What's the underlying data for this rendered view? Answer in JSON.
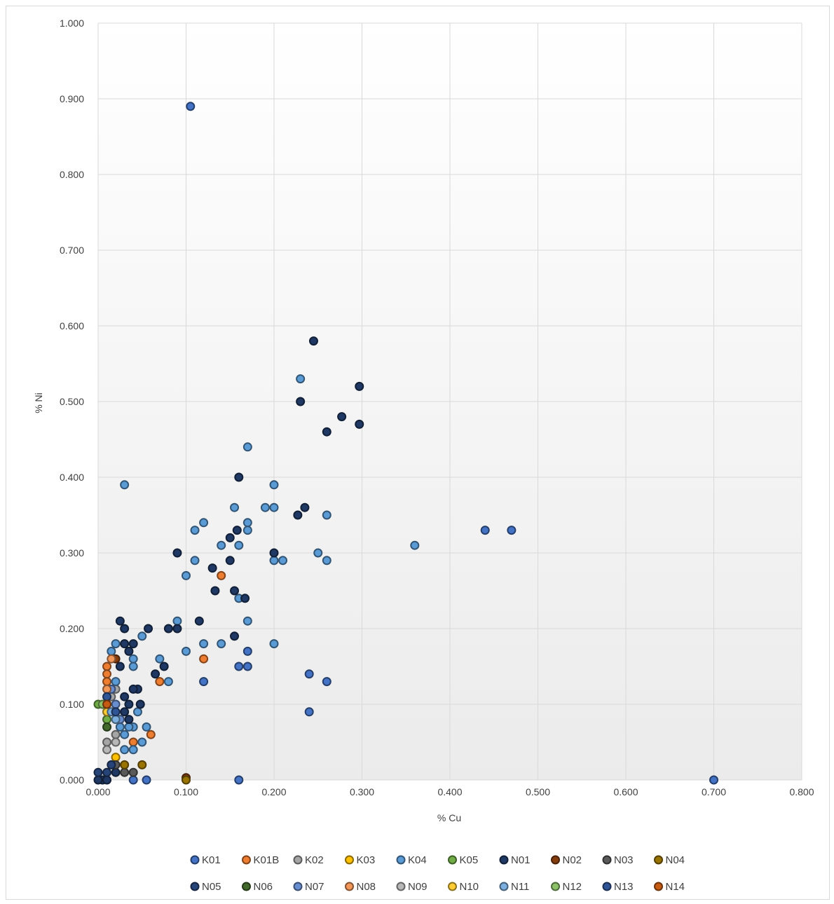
{
  "chart_data": {
    "type": "scatter",
    "xlabel": "% Cu",
    "ylabel": "% Ni",
    "xlim": [
      0,
      0.8
    ],
    "ylim": [
      0,
      1.0
    ],
    "x_ticks": [
      "0.000",
      "0.100",
      "0.200",
      "0.300",
      "0.400",
      "0.500",
      "0.600",
      "0.700",
      "0.800"
    ],
    "y_ticks": [
      "0.000",
      "0.100",
      "0.200",
      "0.300",
      "0.400",
      "0.500",
      "0.600",
      "0.700",
      "0.800",
      "0.900",
      "1.000"
    ],
    "grid": true,
    "legend_position": "bottom",
    "series": [
      {
        "name": "K01",
        "color": "#4472c4",
        "points": [
          [
            0.105,
            0.89
          ],
          [
            0.7,
            0.0
          ],
          [
            0.44,
            0.33
          ],
          [
            0.47,
            0.33
          ],
          [
            0.24,
            0.14
          ],
          [
            0.26,
            0.13
          ],
          [
            0.24,
            0.09
          ],
          [
            0.16,
            0.0
          ],
          [
            0.055,
            0.0
          ],
          [
            0.04,
            0.0
          ],
          [
            0.12,
            0.13
          ],
          [
            0.17,
            0.15
          ],
          [
            0.16,
            0.15
          ],
          [
            0.17,
            0.17
          ]
        ]
      },
      {
        "name": "K01B",
        "color": "#ed7d31",
        "points": [
          [
            0.14,
            0.27
          ],
          [
            0.12,
            0.16
          ],
          [
            0.07,
            0.13
          ],
          [
            0.06,
            0.06
          ],
          [
            0.04,
            0.05
          ],
          [
            0.01,
            0.15
          ],
          [
            0.01,
            0.14
          ],
          [
            0.01,
            0.13
          ]
        ]
      },
      {
        "name": "K02",
        "color": "#a5a5a5",
        "points": [
          [
            0.01,
            0.05
          ],
          [
            0.02,
            0.06
          ],
          [
            0.015,
            0.11
          ],
          [
            0.02,
            0.12
          ]
        ]
      },
      {
        "name": "K03",
        "color": "#ffc000",
        "points": [
          [
            0.01,
            0.09
          ],
          [
            0.01,
            0.1
          ],
          [
            0.02,
            0.03
          ]
        ]
      },
      {
        "name": "K04",
        "color": "#5b9bd5",
        "points": [
          [
            0.23,
            0.53
          ],
          [
            0.17,
            0.44
          ],
          [
            0.2,
            0.39
          ],
          [
            0.19,
            0.36
          ],
          [
            0.2,
            0.36
          ],
          [
            0.155,
            0.36
          ],
          [
            0.26,
            0.35
          ],
          [
            0.17,
            0.34
          ],
          [
            0.12,
            0.34
          ],
          [
            0.17,
            0.33
          ],
          [
            0.11,
            0.33
          ],
          [
            0.36,
            0.31
          ],
          [
            0.14,
            0.31
          ],
          [
            0.16,
            0.31
          ],
          [
            0.25,
            0.3
          ],
          [
            0.2,
            0.29
          ],
          [
            0.21,
            0.29
          ],
          [
            0.26,
            0.29
          ],
          [
            0.11,
            0.29
          ],
          [
            0.1,
            0.27
          ],
          [
            0.16,
            0.24
          ],
          [
            0.17,
            0.21
          ],
          [
            0.09,
            0.21
          ],
          [
            0.05,
            0.19
          ],
          [
            0.2,
            0.18
          ],
          [
            0.14,
            0.18
          ],
          [
            0.12,
            0.18
          ],
          [
            0.1,
            0.17
          ],
          [
            0.07,
            0.16
          ],
          [
            0.08,
            0.13
          ],
          [
            0.04,
            0.15
          ],
          [
            0.04,
            0.16
          ],
          [
            0.02,
            0.18
          ],
          [
            0.015,
            0.17
          ],
          [
            0.02,
            0.13
          ],
          [
            0.03,
            0.06
          ],
          [
            0.03,
            0.04
          ],
          [
            0.025,
            0.07
          ],
          [
            0.04,
            0.07
          ],
          [
            0.045,
            0.09
          ],
          [
            0.05,
            0.05
          ],
          [
            0.055,
            0.07
          ],
          [
            0.03,
            0.39
          ],
          [
            0.035,
            0.07
          ],
          [
            0.04,
            0.04
          ]
        ]
      },
      {
        "name": "K05",
        "color": "#70ad47",
        "points": [
          [
            0.0,
            0.1
          ],
          [
            0.01,
            0.08
          ]
        ]
      },
      {
        "name": "N01",
        "color": "#1f3864",
        "points": [
          [
            0.245,
            0.58
          ],
          [
            0.297,
            0.52
          ],
          [
            0.23,
            0.5
          ],
          [
            0.277,
            0.48
          ],
          [
            0.297,
            0.47
          ],
          [
            0.26,
            0.46
          ],
          [
            0.16,
            0.4
          ],
          [
            0.235,
            0.36
          ],
          [
            0.227,
            0.35
          ],
          [
            0.158,
            0.33
          ],
          [
            0.15,
            0.32
          ],
          [
            0.2,
            0.3
          ],
          [
            0.09,
            0.3
          ],
          [
            0.15,
            0.29
          ],
          [
            0.13,
            0.28
          ],
          [
            0.133,
            0.25
          ],
          [
            0.155,
            0.25
          ],
          [
            0.167,
            0.24
          ],
          [
            0.115,
            0.21
          ],
          [
            0.155,
            0.19
          ],
          [
            0.09,
            0.2
          ],
          [
            0.08,
            0.2
          ],
          [
            0.057,
            0.2
          ],
          [
            0.025,
            0.21
          ],
          [
            0.03,
            0.2
          ],
          [
            0.03,
            0.18
          ],
          [
            0.04,
            0.18
          ],
          [
            0.035,
            0.17
          ],
          [
            0.025,
            0.15
          ],
          [
            0.075,
            0.15
          ],
          [
            0.065,
            0.14
          ],
          [
            0.045,
            0.12
          ],
          [
            0.04,
            0.12
          ],
          [
            0.03,
            0.11
          ],
          [
            0.035,
            0.1
          ],
          [
            0.048,
            0.1
          ],
          [
            0.03,
            0.09
          ],
          [
            0.035,
            0.08
          ],
          [
            0.02,
            0.01
          ],
          [
            0.005,
            0.0
          ],
          [
            0.0,
            0.0
          ],
          [
            0.01,
            0.0
          ]
        ]
      },
      {
        "name": "N02",
        "color": "#843c0c",
        "points": [
          [
            0.1,
            0.003
          ],
          [
            0.02,
            0.16
          ]
        ]
      },
      {
        "name": "N03",
        "color": "#595959",
        "points": [
          [
            0.03,
            0.01
          ],
          [
            0.04,
            0.01
          ],
          [
            0.02,
            0.02
          ]
        ]
      },
      {
        "name": "N04",
        "color": "#997300",
        "points": [
          [
            0.1,
            0.0
          ],
          [
            0.05,
            0.02
          ],
          [
            0.03,
            0.02
          ]
        ]
      },
      {
        "name": "N05",
        "color": "#264478",
        "points": [
          [
            0.0,
            0.01
          ],
          [
            0.01,
            0.01
          ],
          [
            0.015,
            0.02
          ]
        ]
      },
      {
        "name": "N06",
        "color": "#43682b",
        "points": [
          [
            0.01,
            0.07
          ]
        ]
      },
      {
        "name": "N07",
        "color": "#698ed0",
        "points": [
          [
            0.02,
            0.1
          ],
          [
            0.015,
            0.12
          ],
          [
            0.025,
            0.08
          ]
        ]
      },
      {
        "name": "N08",
        "color": "#f1975a",
        "points": [
          [
            0.01,
            0.12
          ],
          [
            0.015,
            0.16
          ]
        ]
      },
      {
        "name": "N09",
        "color": "#b7b7b7",
        "points": [
          [
            0.01,
            0.04
          ],
          [
            0.02,
            0.05
          ]
        ]
      },
      {
        "name": "N10",
        "color": "#ffcd33",
        "points": [
          [
            0.01,
            0.09
          ]
        ]
      },
      {
        "name": "N11",
        "color": "#7cafdd",
        "points": [
          [
            0.01,
            0.1
          ],
          [
            0.015,
            0.09
          ],
          [
            0.02,
            0.08
          ]
        ]
      },
      {
        "name": "N12",
        "color": "#8cc168",
        "points": [
          [
            0.005,
            0.1
          ]
        ]
      },
      {
        "name": "N13",
        "color": "#2f5597",
        "points": [
          [
            0.01,
            0.11
          ],
          [
            0.02,
            0.09
          ]
        ]
      },
      {
        "name": "N14",
        "color": "#c55a11",
        "points": [
          [
            0.01,
            0.1
          ]
        ]
      }
    ]
  }
}
